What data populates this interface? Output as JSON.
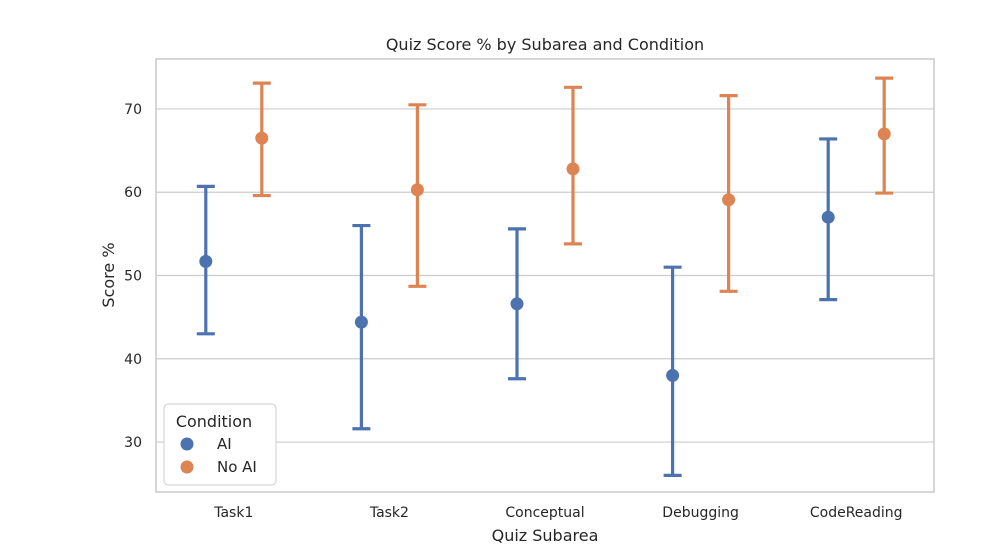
{
  "chart_data": {
    "type": "pointplot",
    "title": "Quiz Score % by Subarea and Condition",
    "xlabel": "Quiz Subarea",
    "ylabel": "Score %",
    "categories": [
      "Task1",
      "Task2",
      "Conceptual",
      "Debugging",
      "CodeReading"
    ],
    "ylim": [
      24,
      76
    ],
    "yticks": [
      30,
      40,
      50,
      60,
      70
    ],
    "grid": true,
    "legend": {
      "title": "Condition",
      "position": "lower-left"
    },
    "series": [
      {
        "name": "AI",
        "color": "#4c72b0",
        "values": [
          51.7,
          44.4,
          46.6,
          38.0,
          57.0
        ],
        "ci_low": [
          43.0,
          31.6,
          37.6,
          26.0,
          47.1
        ],
        "ci_high": [
          60.7,
          56.0,
          55.6,
          51.0,
          66.4
        ]
      },
      {
        "name": "No AI",
        "color": "#dd8452",
        "values": [
          66.5,
          60.3,
          62.8,
          59.1,
          67.0
        ],
        "ci_low": [
          59.6,
          48.7,
          53.8,
          48.1,
          59.9
        ],
        "ci_high": [
          73.1,
          70.5,
          72.6,
          71.6,
          73.7
        ]
      }
    ]
  }
}
